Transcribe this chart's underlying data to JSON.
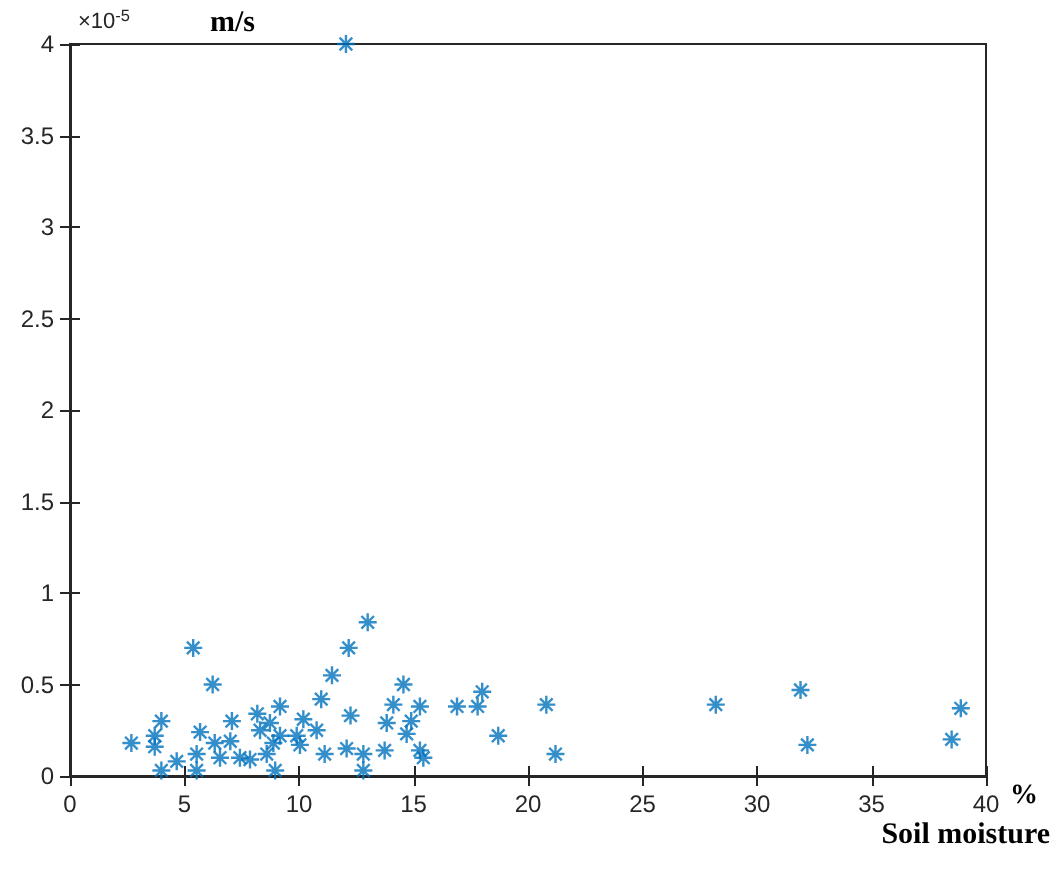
{
  "chart_data": {
    "type": "scatter",
    "xlabel": "Soil moisture",
    "ylabel": "m/s",
    "annotations": [
      "×10$^{-5}$",
      "%"
    ],
    "x": [
      12.05,
      13.0,
      5.38,
      12.17,
      11.44,
      6.23,
      14.56,
      10.97,
      15.28,
      16.9,
      14.12,
      9.17,
      8.18,
      3.99,
      7.07,
      12.25,
      10.19,
      8.73,
      13.83,
      5.68,
      3.7,
      2.68,
      3.7,
      6.32,
      7.0,
      8.3,
      8.88,
      9.9,
      10.77,
      11.12,
      12.08,
      12.81,
      13.74,
      14.7,
      15.28,
      14.9,
      10.04,
      5.53,
      6.55,
      7.42,
      7.86,
      4.66,
      3.99,
      5.53,
      8.96,
      12.81,
      15.43,
      8.59,
      9.17,
      18.0,
      17.8,
      18.7,
      20.8,
      21.2,
      28.2,
      31.9,
      32.2,
      38.5,
      38.9
    ],
    "values": [
      4.0,
      0.84,
      0.7,
      0.7,
      0.55,
      0.5,
      0.5,
      0.42,
      0.38,
      0.38,
      0.39,
      0.38,
      0.34,
      0.3,
      0.3,
      0.33,
      0.31,
      0.29,
      0.29,
      0.24,
      0.22,
      0.18,
      0.16,
      0.18,
      0.19,
      0.25,
      0.18,
      0.22,
      0.25,
      0.12,
      0.15,
      0.12,
      0.14,
      0.23,
      0.14,
      0.3,
      0.17,
      0.12,
      0.1,
      0.1,
      0.09,
      0.08,
      0.03,
      0.03,
      0.03,
      0.03,
      0.1,
      0.12,
      0.22,
      0.46,
      0.38,
      0.22,
      0.39,
      0.12,
      0.39,
      0.47,
      0.17,
      0.2,
      0.37
    ],
    "color": "#0072bd",
    "marker": "cross",
    "grid": false,
    "xlim": [
      0,
      40
    ],
    "xticks": [
      0,
      5,
      10,
      15,
      20,
      25,
      30,
      35,
      40
    ],
    "ylim": [
      0,
      4
    ],
    "yticks": [
      0,
      0.5,
      1,
      1.5,
      2,
      2.5,
      3,
      3.5,
      4
    ]
  }
}
